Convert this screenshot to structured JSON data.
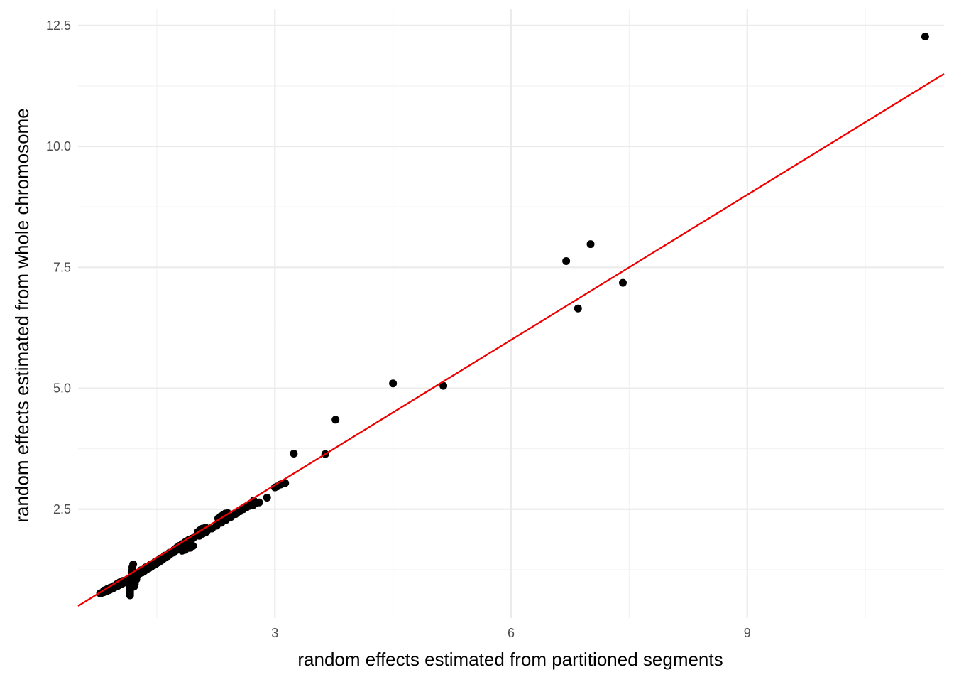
{
  "chart_data": {
    "type": "scatter",
    "xlabel": "random effects estimated from partitioned segments",
    "ylabel": "random effects estimated from whole chromosome",
    "xlim": [
      0.5,
      11.5
    ],
    "ylim": [
      0.25,
      12.85
    ],
    "x_ticks": [
      3,
      6,
      9
    ],
    "x_tick_labels": [
      "3",
      "6",
      "9"
    ],
    "x_minor_ticks": [
      1.5,
      4.5,
      7.5,
      10.5
    ],
    "y_ticks": [
      2.5,
      5.0,
      7.5,
      10.0,
      12.5
    ],
    "y_tick_labels": [
      "2.5",
      "5.0",
      "7.5",
      "10.0",
      "12.5"
    ],
    "y_minor_ticks": [
      1.25,
      3.75,
      6.25,
      8.75,
      11.25
    ],
    "grid": true,
    "reference_line": {
      "slope": 1,
      "intercept": 0,
      "color": "#ee0000"
    },
    "point_color": "#000000",
    "points": [
      [
        0.78,
        0.76
      ],
      [
        0.8,
        0.77
      ],
      [
        0.82,
        0.78
      ],
      [
        0.84,
        0.79
      ],
      [
        0.86,
        0.8
      ],
      [
        0.88,
        0.82
      ],
      [
        0.9,
        0.83
      ],
      [
        0.92,
        0.85
      ],
      [
        0.94,
        0.86
      ],
      [
        0.96,
        0.88
      ],
      [
        0.98,
        0.9
      ],
      [
        1.0,
        0.91
      ],
      [
        1.02,
        0.93
      ],
      [
        1.04,
        0.95
      ],
      [
        1.06,
        0.96
      ],
      [
        1.08,
        0.98
      ],
      [
        1.1,
        1.0
      ],
      [
        1.12,
        1.01
      ],
      [
        1.14,
        1.03
      ],
      [
        1.16,
        1.05
      ],
      [
        1.18,
        1.06
      ],
      [
        1.2,
        1.08
      ],
      [
        0.83,
        0.82
      ],
      [
        0.87,
        0.85
      ],
      [
        0.91,
        0.88
      ],
      [
        0.95,
        0.91
      ],
      [
        0.99,
        0.95
      ],
      [
        1.03,
        0.99
      ],
      [
        1.07,
        1.02
      ],
      [
        1.16,
        0.72
      ],
      [
        1.16,
        0.76
      ],
      [
        1.16,
        0.8
      ],
      [
        1.16,
        0.84
      ],
      [
        1.16,
        0.88
      ],
      [
        1.16,
        0.92
      ],
      [
        1.16,
        0.96
      ],
      [
        1.16,
        1.0
      ],
      [
        1.17,
        1.05
      ],
      [
        1.17,
        1.1
      ],
      [
        1.18,
        1.15
      ],
      [
        1.18,
        1.2
      ],
      [
        1.19,
        1.25
      ],
      [
        1.19,
        1.3
      ],
      [
        1.2,
        1.36
      ],
      [
        1.21,
        0.9
      ],
      [
        1.22,
        0.95
      ],
      [
        1.24,
        1.05
      ],
      [
        1.26,
        1.15
      ],
      [
        1.28,
        1.2
      ],
      [
        1.22,
        1.12
      ],
      [
        1.25,
        1.14
      ],
      [
        1.28,
        1.17
      ],
      [
        1.31,
        1.19
      ],
      [
        1.34,
        1.22
      ],
      [
        1.37,
        1.25
      ],
      [
        1.4,
        1.28
      ],
      [
        1.43,
        1.31
      ],
      [
        1.46,
        1.34
      ],
      [
        1.49,
        1.37
      ],
      [
        1.52,
        1.4
      ],
      [
        1.55,
        1.43
      ],
      [
        1.58,
        1.47
      ],
      [
        1.61,
        1.5
      ],
      [
        1.64,
        1.53
      ],
      [
        1.67,
        1.57
      ],
      [
        1.7,
        1.6
      ],
      [
        1.73,
        1.63
      ],
      [
        1.76,
        1.66
      ],
      [
        1.79,
        1.69
      ],
      [
        1.82,
        1.72
      ],
      [
        1.3,
        1.24
      ],
      [
        1.36,
        1.3
      ],
      [
        1.42,
        1.36
      ],
      [
        1.48,
        1.42
      ],
      [
        1.54,
        1.48
      ],
      [
        1.6,
        1.54
      ],
      [
        1.66,
        1.6
      ],
      [
        1.72,
        1.66
      ],
      [
        1.78,
        1.72
      ],
      [
        1.84,
        1.78
      ],
      [
        1.9,
        1.84
      ],
      [
        1.96,
        1.9
      ],
      [
        1.75,
        1.7
      ],
      [
        1.78,
        1.74
      ],
      [
        1.82,
        1.78
      ],
      [
        1.86,
        1.82
      ],
      [
        1.9,
        1.86
      ],
      [
        1.94,
        1.89
      ],
      [
        1.98,
        1.93
      ],
      [
        2.02,
        1.96
      ],
      [
        2.06,
        2.0
      ],
      [
        2.1,
        2.03
      ],
      [
        2.14,
        2.06
      ],
      [
        1.82,
        1.64
      ],
      [
        1.86,
        1.66
      ],
      [
        1.92,
        1.7
      ],
      [
        1.96,
        1.74
      ],
      [
        2.04,
        1.95
      ],
      [
        2.08,
        1.99
      ],
      [
        2.12,
        2.02
      ],
      [
        2.02,
        2.03
      ],
      [
        2.05,
        2.07
      ],
      [
        2.08,
        2.1
      ],
      [
        2.12,
        2.12
      ],
      [
        2.2,
        2.1
      ],
      [
        2.26,
        2.16
      ],
      [
        2.32,
        2.22
      ],
      [
        2.38,
        2.28
      ],
      [
        2.44,
        2.34
      ],
      [
        2.5,
        2.4
      ],
      [
        2.28,
        2.31
      ],
      [
        2.31,
        2.35
      ],
      [
        2.34,
        2.38
      ],
      [
        2.37,
        2.41
      ],
      [
        2.4,
        2.42
      ],
      [
        2.52,
        2.43
      ],
      [
        2.56,
        2.46
      ],
      [
        2.6,
        2.5
      ],
      [
        2.64,
        2.54
      ],
      [
        2.68,
        2.57
      ],
      [
        2.72,
        2.58
      ],
      [
        2.76,
        2.62
      ],
      [
        2.8,
        2.64
      ],
      [
        2.73,
        2.68
      ],
      [
        2.9,
        2.74
      ],
      [
        3.0,
        2.95
      ],
      [
        3.03,
        2.97
      ],
      [
        3.07,
        3.01
      ],
      [
        3.1,
        3.03
      ],
      [
        3.13,
        3.04
      ],
      [
        3.24,
        3.65
      ],
      [
        3.64,
        3.64
      ],
      [
        3.77,
        4.35
      ],
      [
        4.5,
        5.1
      ],
      [
        5.14,
        5.05
      ],
      [
        6.7,
        7.63
      ],
      [
        6.85,
        6.65
      ],
      [
        7.01,
        7.98
      ],
      [
        7.42,
        7.18
      ],
      [
        11.26,
        12.27
      ]
    ]
  }
}
